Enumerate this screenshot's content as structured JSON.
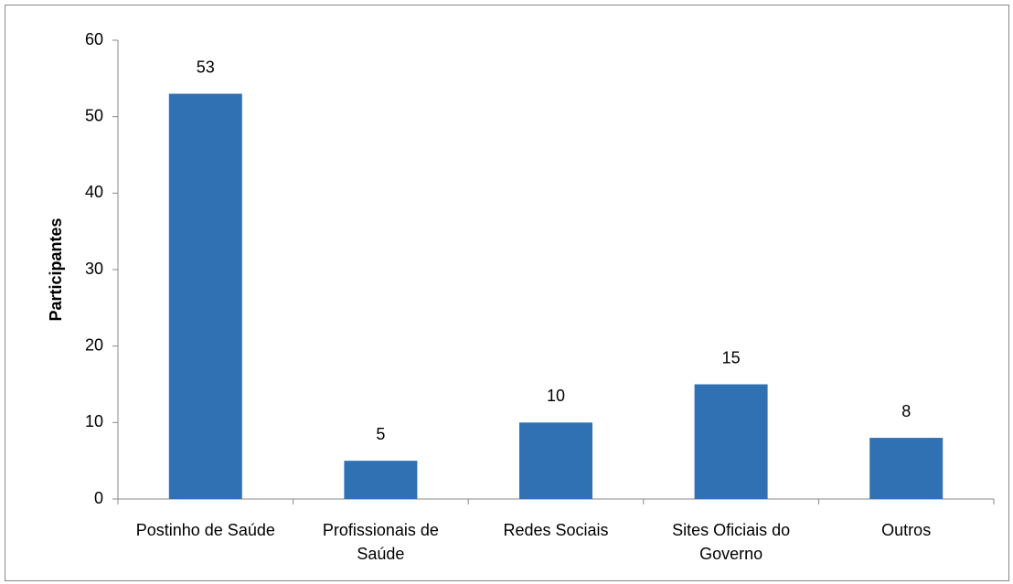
{
  "chart_data": {
    "type": "bar",
    "y_label": "Participantes",
    "categories": [
      "Postinho de Saúde",
      "Profissionais de Saúde",
      "Redes Sociais",
      "Sites Oficiais do Governo",
      "Outros"
    ],
    "values": [
      53,
      5,
      10,
      15,
      8
    ],
    "color": "#3071b3",
    "ylim": [
      0,
      60
    ],
    "yticks": [
      0,
      10,
      20,
      30,
      40,
      50,
      60
    ],
    "grid": false
  }
}
